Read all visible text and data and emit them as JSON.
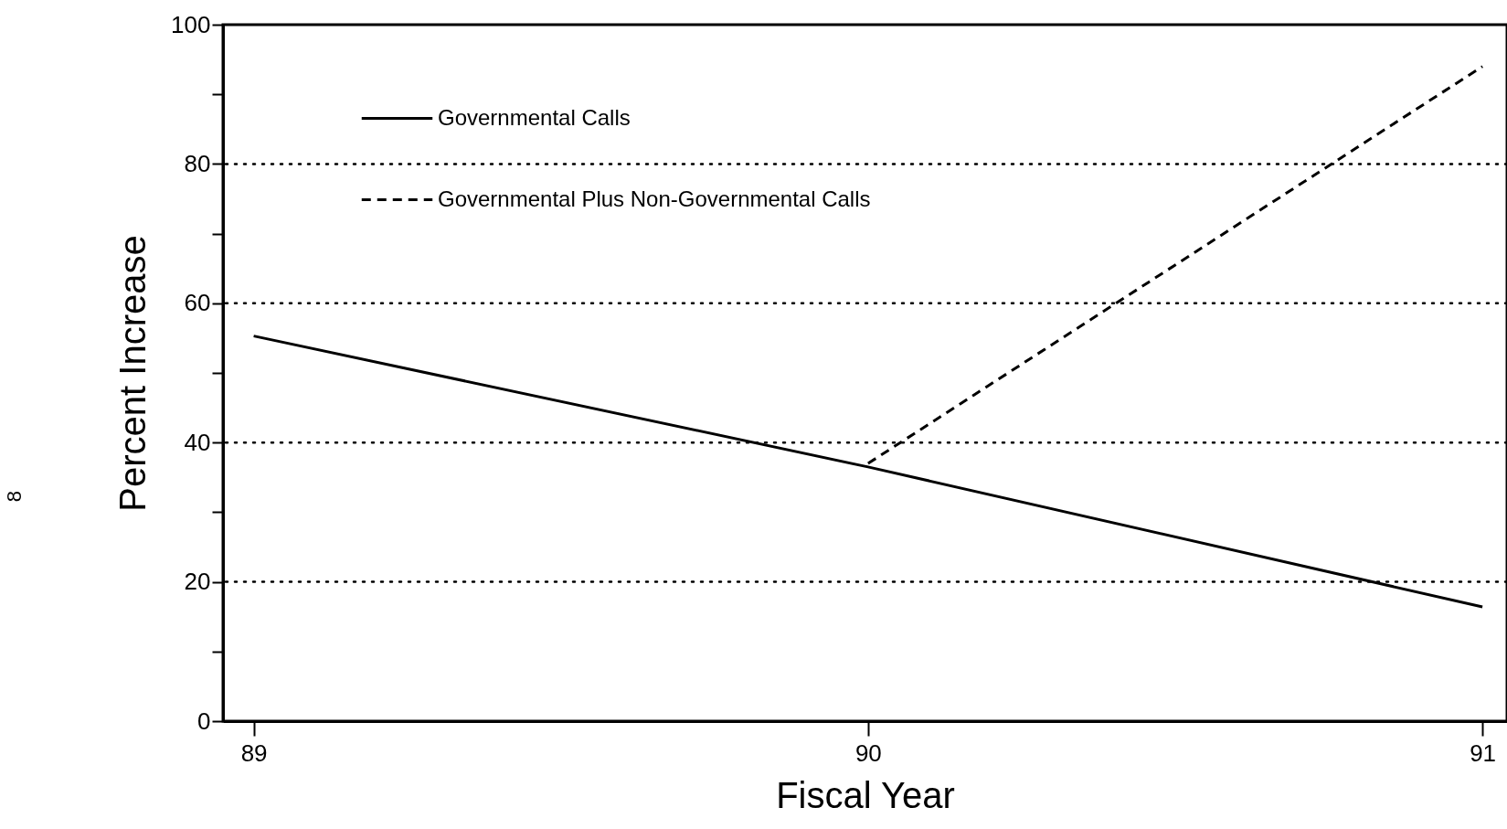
{
  "chart_data": {
    "type": "line",
    "xlabel": "Fiscal Year",
    "ylabel": "Percent Increase",
    "x": [
      89,
      90,
      91
    ],
    "series": [
      {
        "name": "Governmental Calls",
        "color": "#000000",
        "line_style": "solid",
        "values": [
          55.3,
          36.5,
          16.4
        ]
      },
      {
        "name": "Governmental Plus Non-Governmental Calls",
        "color": "#000000",
        "line_style": "dashed",
        "values": [
          null,
          37,
          94
        ]
      }
    ],
    "xlim": [
      88.95,
      91.04
    ],
    "xticks": [
      89,
      90,
      91
    ],
    "ylim": [
      0,
      100
    ],
    "yticks": [
      0,
      {
        "value": 10,
        "label": null
      },
      20,
      {
        "value": 30,
        "label": null
      },
      40,
      {
        "value": 50,
        "label": null
      },
      60,
      {
        "value": 70,
        "label": null
      },
      80,
      {
        "value": 90,
        "label": null
      },
      100
    ],
    "grid": "y",
    "legend": "top",
    "marker": "none",
    "annotations": [
      "8"
    ]
  }
}
